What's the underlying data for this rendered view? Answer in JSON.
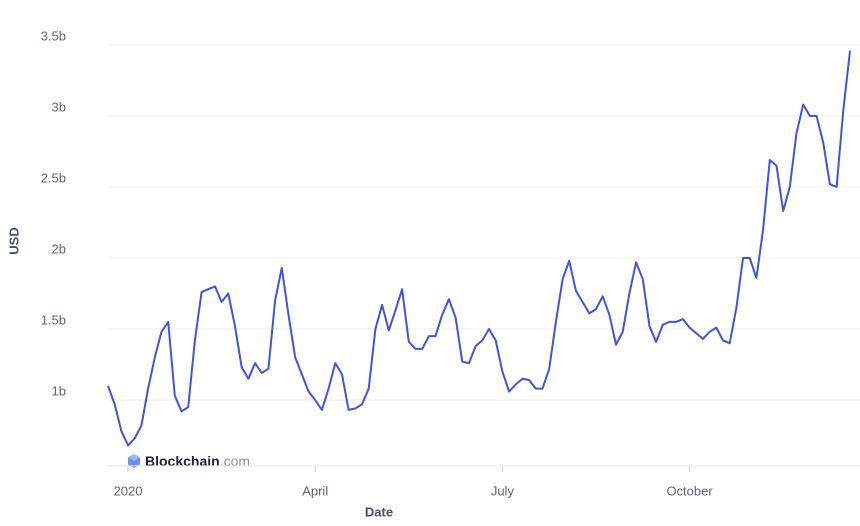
{
  "chart_data": {
    "type": "line",
    "x_label": "Date",
    "y_label": "USD",
    "watermark": {
      "brand": "Blockchain",
      "suffix": ".com"
    },
    "categories": [
      null,
      null,
      null,
      "2020",
      null,
      null,
      null,
      null,
      null,
      null,
      null,
      null,
      null,
      null,
      null,
      null,
      null,
      null,
      null,
      null,
      null,
      null,
      null,
      null,
      null,
      null,
      null,
      null,
      null,
      null,
      null,
      "April",
      null,
      null,
      null,
      null,
      null,
      null,
      null,
      null,
      null,
      null,
      null,
      null,
      null,
      null,
      null,
      null,
      null,
      null,
      null,
      null,
      null,
      null,
      null,
      null,
      null,
      null,
      null,
      "July",
      null,
      null,
      null,
      null,
      null,
      null,
      null,
      null,
      null,
      null,
      null,
      null,
      null,
      null,
      null,
      null,
      null,
      null,
      null,
      null,
      null,
      null,
      null,
      null,
      null,
      null,
      null,
      "October",
      null,
      null,
      null,
      null,
      null,
      null,
      null,
      null,
      null,
      null,
      null,
      null,
      null,
      null,
      null,
      null,
      null,
      null,
      null,
      null,
      null,
      null,
      null,
      null
    ],
    "series": [
      {
        "name": "USD",
        "color": "#3d55e0",
        "values": [
          1.1,
          0.97,
          0.78,
          0.68,
          0.73,
          0.82,
          1.08,
          1.3,
          1.48,
          1.55,
          1.03,
          0.92,
          0.95,
          1.42,
          1.76,
          1.78,
          1.8,
          1.69,
          1.75,
          1.52,
          1.23,
          1.15,
          1.26,
          1.19,
          1.22,
          1.7,
          1.93,
          1.6,
          1.3,
          1.18,
          1.06,
          1.0,
          0.93,
          1.08,
          1.26,
          1.18,
          0.93,
          0.94,
          0.97,
          1.08,
          1.5,
          1.67,
          1.49,
          1.63,
          1.78,
          1.41,
          1.36,
          1.36,
          1.45,
          1.45,
          1.6,
          1.71,
          1.58,
          1.27,
          1.26,
          1.38,
          1.42,
          1.5,
          1.42,
          1.2,
          1.06,
          1.11,
          1.15,
          1.14,
          1.08,
          1.08,
          1.22,
          1.55,
          1.85,
          1.98,
          1.77,
          1.69,
          1.61,
          1.64,
          1.73,
          1.6,
          1.39,
          1.48,
          1.75,
          1.97,
          1.85,
          1.52,
          1.41,
          1.53,
          1.55,
          1.55,
          1.57,
          1.51,
          1.47,
          1.43,
          1.48,
          1.51,
          1.42,
          1.4,
          1.65,
          2.0,
          2.0,
          1.86,
          2.2,
          2.69,
          2.65,
          2.33,
          2.5,
          2.88,
          3.08,
          3.0,
          3.0,
          2.81,
          2.52,
          2.5,
          3.04,
          3.46
        ]
      }
    ],
    "ylim": [
      0.55,
      3.6
    ],
    "yticks": [
      {
        "value": 1,
        "label": "1b"
      },
      {
        "value": 1.5,
        "label": "1.5b"
      },
      {
        "value": 2,
        "label": "2b"
      },
      {
        "value": 2.5,
        "label": "2.5b"
      },
      {
        "value": 3,
        "label": "3b"
      },
      {
        "value": 3.5,
        "label": "3.5b"
      }
    ],
    "grid": true
  }
}
